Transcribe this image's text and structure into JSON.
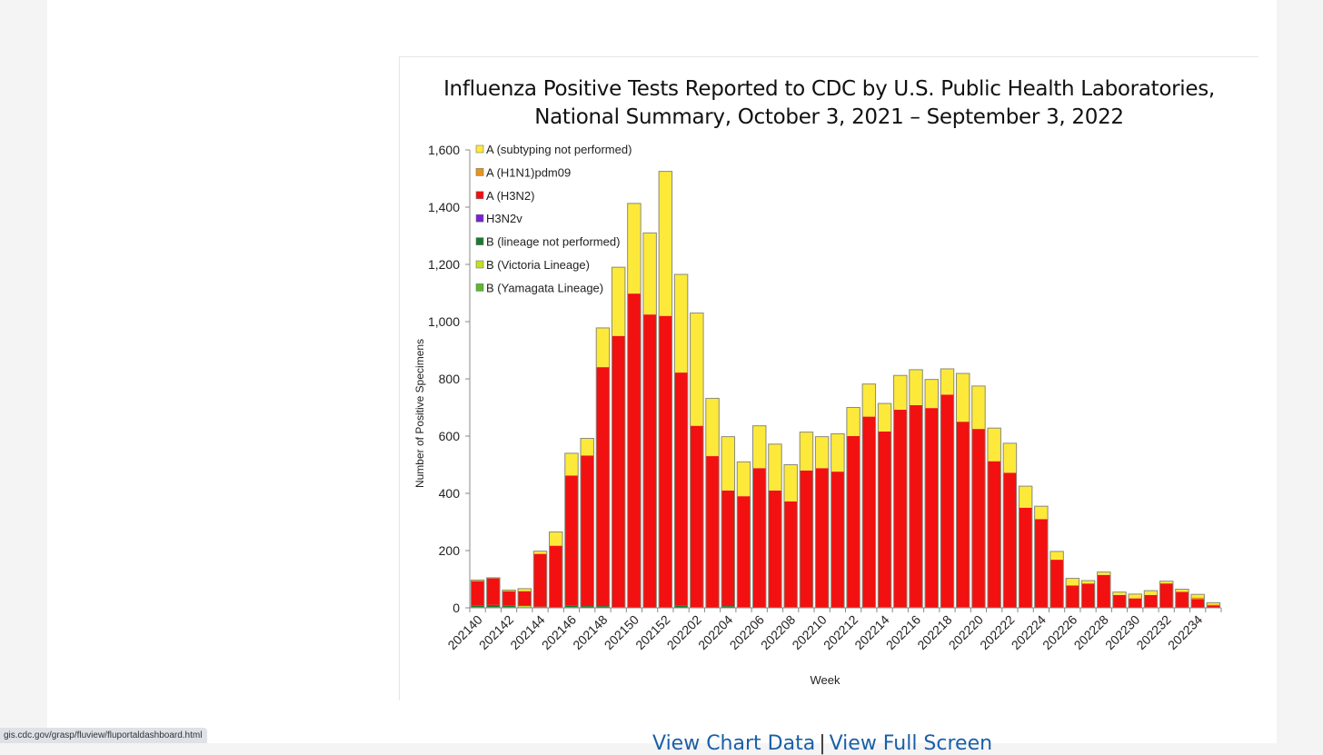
{
  "status_bar": {
    "url": "gis.cdc.gov/grasp/fluview/fluportaldashboard.html"
  },
  "links": {
    "view_chart_data": "View Chart Data",
    "separator": "|",
    "view_full_screen": "View Full Screen"
  },
  "chart_data": {
    "type": "bar",
    "stacked": true,
    "title_line1": "Influenza Positive Tests Reported to CDC by U.S. Public Health Laboratories,",
    "title_line2": "National Summary, October 3, 2021 – September 3, 2022",
    "xlabel": "Week",
    "ylabel": "Number of Positive Specimens",
    "ylim": [
      0,
      1600
    ],
    "yticks": [
      0,
      200,
      400,
      600,
      800,
      1000,
      1200,
      1400,
      1600
    ],
    "ytick_labels": [
      "0",
      "200",
      "400",
      "600",
      "800",
      "1,000",
      "1,200",
      "1,400",
      "1,600"
    ],
    "legend_position": "top-left",
    "categories": [
      "202140",
      "202141",
      "202142",
      "202143",
      "202144",
      "202145",
      "202146",
      "202147",
      "202148",
      "202149",
      "202150",
      "202151",
      "202152",
      "202201",
      "202202",
      "202203",
      "202204",
      "202205",
      "202206",
      "202207",
      "202208",
      "202209",
      "202210",
      "202211",
      "202212",
      "202213",
      "202214",
      "202215",
      "202216",
      "202217",
      "202218",
      "202219",
      "202220",
      "202221",
      "202222",
      "202223",
      "202224",
      "202225",
      "202226",
      "202227",
      "202228",
      "202229",
      "202230",
      "202231",
      "202232",
      "202233",
      "202234",
      "202235"
    ],
    "xtick_labels": [
      "202140",
      "202142",
      "202144",
      "202146",
      "202148",
      "202150",
      "202152",
      "202202",
      "202204",
      "202206",
      "202208",
      "202210",
      "202212",
      "202214",
      "202216",
      "202218",
      "202220",
      "202222",
      "202224",
      "202226",
      "202228",
      "202230",
      "202232",
      "202234"
    ],
    "series": [
      {
        "name": "B (Yamagata Lineage)",
        "color": "#5cb82e",
        "values": [
          0,
          0,
          0,
          0,
          0,
          0,
          0,
          0,
          0,
          0,
          0,
          0,
          0,
          0,
          0,
          0,
          0,
          0,
          0,
          0,
          0,
          0,
          0,
          0,
          0,
          0,
          0,
          0,
          0,
          0,
          0,
          0,
          0,
          0,
          0,
          0,
          0,
          0,
          0,
          0,
          0,
          0,
          0,
          0,
          0,
          0,
          0,
          0
        ]
      },
      {
        "name": "B (Victoria Lineage)",
        "color": "#c6e01e",
        "values": [
          2,
          2,
          2,
          6,
          2,
          1,
          2,
          1,
          1,
          0,
          0,
          0,
          0,
          0,
          0,
          0,
          0,
          0,
          0,
          0,
          0,
          0,
          0,
          0,
          0,
          0,
          0,
          0,
          0,
          0,
          0,
          0,
          0,
          0,
          0,
          0,
          0,
          0,
          0,
          0,
          0,
          0,
          0,
          0,
          0,
          0,
          0,
          0
        ]
      },
      {
        "name": "B (lineage not performed)",
        "color": "#1a7a2e",
        "values": [
          5,
          8,
          5,
          3,
          2,
          2,
          7,
          5,
          5,
          2,
          1,
          1,
          3,
          7,
          2,
          1,
          6,
          2,
          1,
          1,
          2,
          2,
          1,
          1,
          1,
          2,
          2,
          3,
          2,
          1,
          1,
          2,
          1,
          1,
          1,
          1,
          1,
          1,
          1,
          1,
          1,
          1,
          1,
          1,
          1,
          1,
          1,
          1
        ]
      },
      {
        "name": "H3N2v",
        "color": "#7a1fd6",
        "values": [
          0,
          0,
          0,
          0,
          0,
          0,
          0,
          0,
          0,
          0,
          0,
          0,
          0,
          0,
          0,
          0,
          0,
          0,
          0,
          0,
          0,
          0,
          0,
          0,
          0,
          0,
          0,
          0,
          0,
          0,
          0,
          0,
          0,
          0,
          0,
          0,
          0,
          0,
          0,
          0,
          0,
          0,
          0,
          1,
          0,
          0,
          0,
          0
        ]
      },
      {
        "name": "A (H3N2)",
        "color": "#f21010",
        "values": [
          86,
          93,
          51,
          49,
          184,
          214,
          453,
          526,
          835,
          948,
          1097,
          1024,
          1017,
          815,
          634,
          529,
          404,
          388,
          487,
          409,
          370,
          478,
          487,
          475,
          599,
          666,
          614,
          689,
          706,
          697,
          744,
          648,
          624,
          511,
          471,
          349,
          309,
          167,
          77,
          84,
          114,
          44,
          32,
          43,
          84,
          54,
          29,
          7
        ]
      },
      {
        "name": "A (H1N1)pdm09",
        "color": "#e8941a",
        "values": [
          2,
          0,
          1,
          1,
          2,
          1,
          0,
          1,
          1,
          0,
          0,
          0,
          0,
          0,
          0,
          0,
          0,
          0,
          0,
          0,
          0,
          0,
          0,
          1,
          0,
          0,
          0,
          0,
          0,
          0,
          0,
          1,
          0,
          1,
          0,
          0,
          0,
          0,
          1,
          0,
          0,
          0,
          0,
          0,
          1,
          3,
          6,
          3
        ]
      },
      {
        "name": "A (subtyping not performed)",
        "color": "#fde93a",
        "values": [
          2,
          2,
          3,
          8,
          8,
          47,
          78,
          59,
          136,
          240,
          315,
          285,
          505,
          343,
          394,
          202,
          188,
          120,
          148,
          162,
          128,
          134,
          110,
          131,
          100,
          114,
          98,
          120,
          124,
          100,
          90,
          168,
          150,
          115,
          103,
          75,
          45,
          29,
          24,
          10,
          10,
          10,
          15,
          15,
          7,
          7,
          11,
          7
        ]
      }
    ],
    "legend_order": [
      "A (subtyping not performed)",
      "A (H1N1)pdm09",
      "A (H3N2)",
      "H3N2v",
      "B (lineage not performed)",
      "B (Victoria Lineage)",
      "B (Yamagata Lineage)"
    ]
  }
}
